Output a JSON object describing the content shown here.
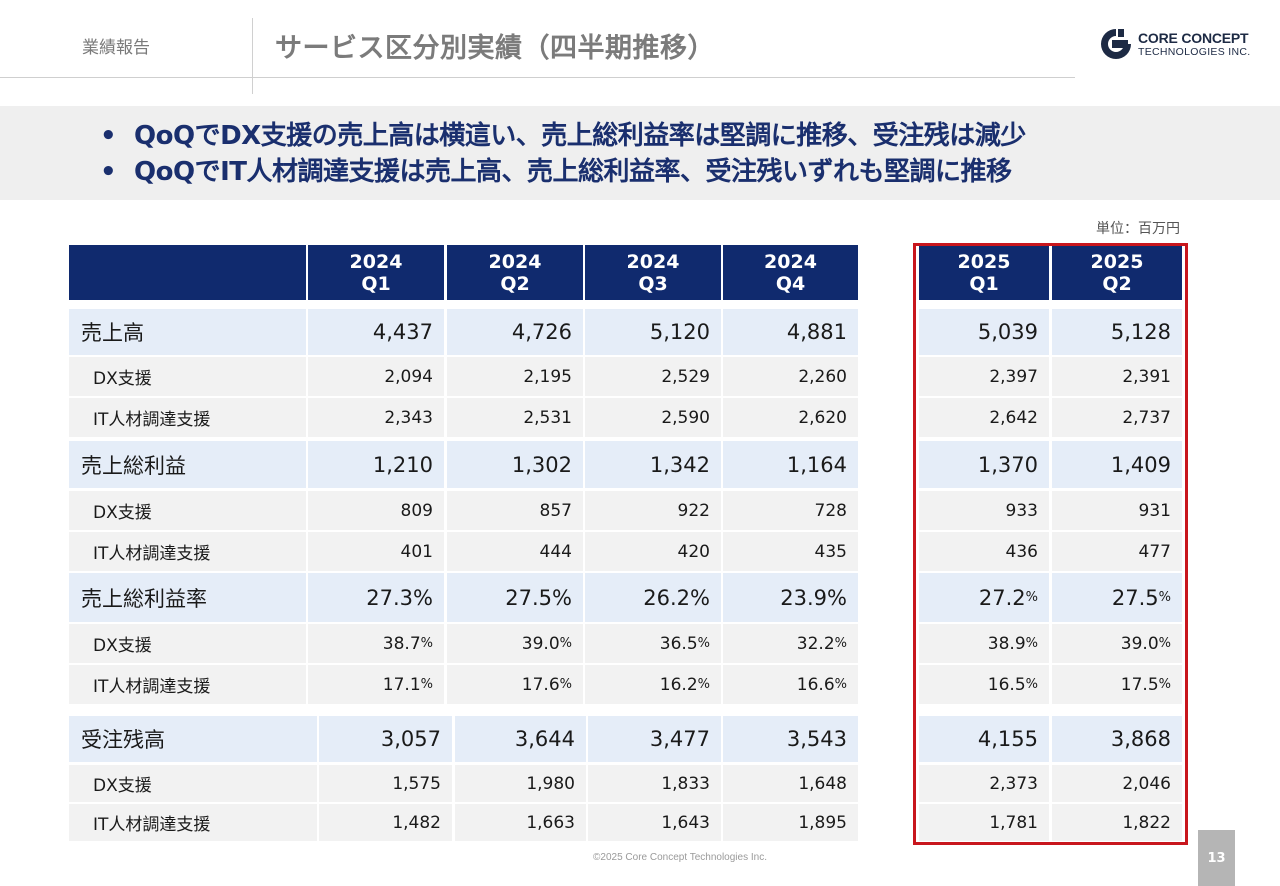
{
  "header": {
    "section": "業績報告",
    "title": "サービス区分別実績（四半期推移）",
    "logo_line1": "CORE CONCEPT",
    "logo_line2": "TECHNOLOGIES INC."
  },
  "summary": {
    "bullet_char": "•",
    "points": [
      "QoQでDX支援の売上高は横這い、売上総利益率は堅調に推移、受注残は減少",
      "QoQでIT人材調達支援は売上高、売上総利益率、受注残いずれも堅調に推移"
    ]
  },
  "unit": "単位：百万円",
  "table": {
    "columns": [
      {
        "year": "2024",
        "quarter": "Q1"
      },
      {
        "year": "2024",
        "quarter": "Q2"
      },
      {
        "year": "2024",
        "quarter": "Q3"
      },
      {
        "year": "2024",
        "quarter": "Q4"
      },
      {
        "year": "2025",
        "quarter": "Q1"
      },
      {
        "year": "2025",
        "quarter": "Q2"
      }
    ],
    "rows": [
      {
        "label": "売上高",
        "values": [
          "4,437",
          "4,726",
          "5,120",
          "4,881",
          "5,039",
          "5,128"
        ]
      },
      {
        "label": "DX支援",
        "values": [
          "2,094",
          "2,195",
          "2,529",
          "2,260",
          "2,397",
          "2,391"
        ]
      },
      {
        "label": "IT人材調達支援",
        "values": [
          "2,343",
          "2,531",
          "2,590",
          "2,620",
          "2,642",
          "2,737"
        ]
      },
      {
        "label": "売上総利益",
        "values": [
          "1,210",
          "1,302",
          "1,342",
          "1,164",
          "1,370",
          "1,409"
        ]
      },
      {
        "label": "DX支援",
        "values": [
          "809",
          "857",
          "922",
          "728",
          "933",
          "931"
        ]
      },
      {
        "label": "IT人材調達支援",
        "values": [
          "401",
          "444",
          "420",
          "435",
          "436",
          "477"
        ]
      },
      {
        "label": "売上総利益率",
        "values": [
          "27.3",
          "27.5",
          "26.2",
          "23.9",
          "27.2",
          "27.5"
        ]
      },
      {
        "label": "DX支援",
        "values": [
          "38.7",
          "39.0",
          "36.5",
          "32.2",
          "38.9",
          "39.0"
        ]
      },
      {
        "label": "IT人材調達支援",
        "values": [
          "17.1",
          "17.6",
          "16.2",
          "16.6",
          "16.5",
          "17.5"
        ]
      },
      {
        "label": "受注残高",
        "values": [
          "3,057",
          "3,644",
          "3,477",
          "3,543",
          "4,155",
          "3,868"
        ]
      },
      {
        "label": "DX支援",
        "values": [
          "1,575",
          "1,980",
          "1,833",
          "1,648",
          "2,373",
          "2,046"
        ]
      },
      {
        "label": "IT人材調達支援",
        "values": [
          "1,482",
          "1,663",
          "1,643",
          "1,895",
          "1,781",
          "1,822"
        ]
      }
    ],
    "percent_sign": "%"
  },
  "footer": {
    "copyright": "©2025 Core Concept Technologies Inc.",
    "page_number": "13"
  },
  "colors": {
    "header_fill": "#102a6e",
    "main_row_fill": "#e5edf8",
    "sub_row_fill": "#f2f2f2",
    "highlight_border": "#c8161d",
    "bullet_text": "#1a2f6e"
  }
}
